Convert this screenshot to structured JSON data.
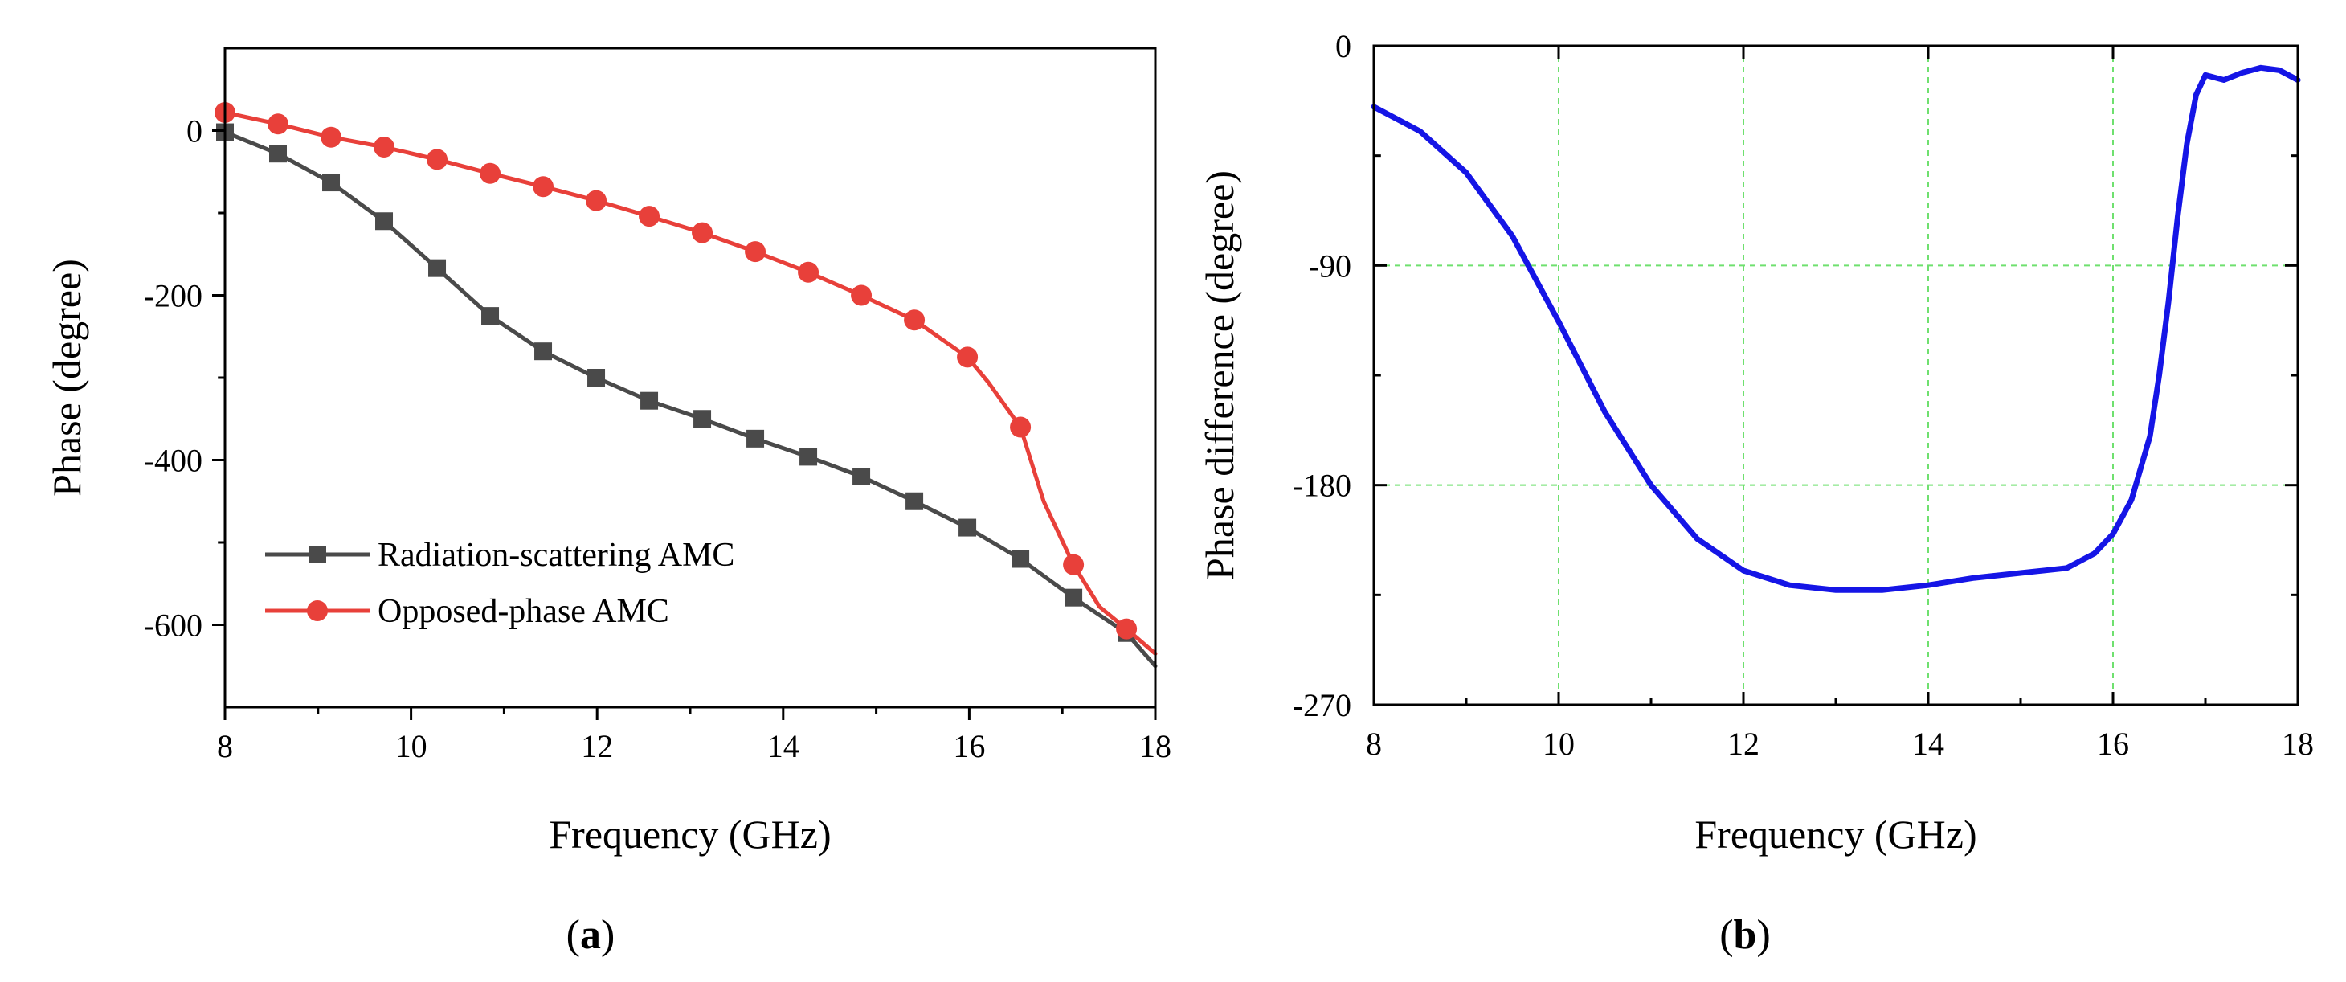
{
  "chart_data": [
    {
      "id": "a",
      "type": "line",
      "caption": {
        "open": "(",
        "letter": "a",
        "close": ")"
      },
      "xlabel": "Frequency (GHz)",
      "ylabel": "Phase (degree)",
      "xlim": [
        8,
        18
      ],
      "ylim": [
        -700,
        100
      ],
      "xticks": [
        "8",
        "10",
        "12",
        "14",
        "16",
        "18"
      ],
      "yticks": [
        "0",
        "-200",
        "-400",
        "-600"
      ],
      "grid": false,
      "legend_position": "bottom-left",
      "series": [
        {
          "name": "Radiation-scattering AMC",
          "color": "#4a4a4a",
          "marker": "square",
          "x": [
            8.0,
            8.57,
            9.14,
            9.71,
            10.28,
            10.85,
            11.42,
            11.99,
            12.56,
            13.13,
            13.7,
            14.27,
            14.84,
            15.41,
            15.98,
            16.55,
            17.12,
            17.69,
            18.0
          ],
          "y": [
            -2,
            -28,
            -63,
            -110,
            -167,
            -225,
            -268,
            -300,
            -328,
            -350,
            -374,
            -396,
            -420,
            -450,
            -482,
            -520,
            -567,
            -610,
            -650
          ],
          "marker_x": [
            8.0,
            8.57,
            9.14,
            9.71,
            10.28,
            10.85,
            11.42,
            11.99,
            12.56,
            13.13,
            13.7,
            14.27,
            14.84,
            15.41,
            15.98,
            16.55,
            17.12,
            17.69
          ],
          "marker_y": [
            -2,
            -28,
            -63,
            -110,
            -167,
            -225,
            -268,
            -300,
            -328,
            -350,
            -374,
            -396,
            -420,
            -450,
            -482,
            -520,
            -567,
            -610
          ]
        },
        {
          "name": "Opposed-phase AMC",
          "color": "#e8403a",
          "marker": "circle",
          "x": [
            8.0,
            8.57,
            9.14,
            9.71,
            10.28,
            10.85,
            11.42,
            11.99,
            12.56,
            13.13,
            13.7,
            14.27,
            14.84,
            15.41,
            15.98,
            16.2,
            16.55,
            16.8,
            17.12,
            17.4,
            17.69,
            18.0
          ],
          "y": [
            22,
            8,
            -8,
            -20,
            -35,
            -52,
            -68,
            -85,
            -104,
            -124,
            -147,
            -172,
            -200,
            -230,
            -275,
            -305,
            -360,
            -450,
            -527,
            -578,
            -605,
            -635
          ],
          "marker_x": [
            8.0,
            8.57,
            9.14,
            9.71,
            10.28,
            10.85,
            11.42,
            11.99,
            12.56,
            13.13,
            13.7,
            14.27,
            14.84,
            15.41,
            15.98,
            16.55,
            17.12,
            17.69
          ],
          "marker_y": [
            22,
            8,
            -8,
            -20,
            -35,
            -52,
            -68,
            -85,
            -104,
            -124,
            -147,
            -172,
            -200,
            -230,
            -275,
            -360,
            -527,
            -605
          ]
        }
      ]
    },
    {
      "id": "b",
      "type": "line",
      "caption": {
        "open": "(",
        "letter": "b",
        "close": ")"
      },
      "xlabel": "Frequency (GHz)",
      "ylabel": "Phase difference (degree)",
      "xlim": [
        8,
        18
      ],
      "ylim": [
        -270,
        0
      ],
      "xticks": [
        "8",
        "10",
        "12",
        "14",
        "16",
        "18"
      ],
      "yticks": [
        "0",
        "-90",
        "-180",
        "-270"
      ],
      "grid": true,
      "series": [
        {
          "name": "Phase difference",
          "color": "#1515e6",
          "x": [
            8.0,
            8.5,
            9.0,
            9.5,
            10.0,
            10.5,
            11.0,
            11.5,
            12.0,
            12.5,
            13.0,
            13.5,
            14.0,
            14.5,
            15.0,
            15.5,
            15.8,
            16.0,
            16.2,
            16.4,
            16.5,
            16.6,
            16.7,
            16.8,
            16.9,
            17.0,
            17.2,
            17.4,
            17.6,
            17.8,
            18.0
          ],
          "y": [
            -25,
            -35,
            -52,
            -78,
            -113,
            -150,
            -180,
            -202,
            -215,
            -221,
            -223,
            -223,
            -221,
            -218,
            -216,
            -214,
            -208,
            -200,
            -186,
            -160,
            -135,
            -105,
            -70,
            -40,
            -20,
            -12,
            -14,
            -11,
            -9,
            -10,
            -14
          ]
        }
      ]
    }
  ]
}
